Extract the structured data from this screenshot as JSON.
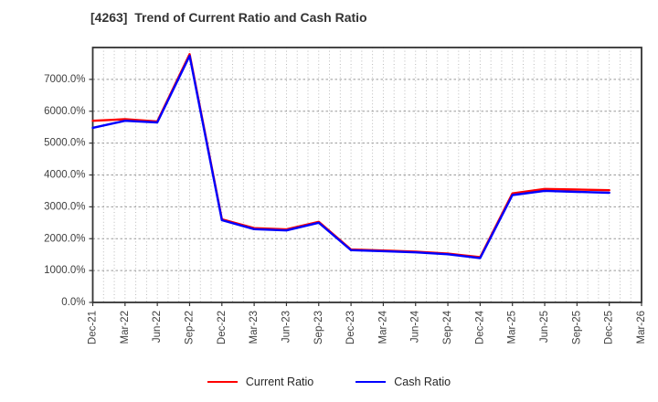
{
  "page": {
    "title": "[4263]  Trend of Current Ratio and Cash Ratio"
  },
  "chart_data": {
    "type": "line",
    "title": "[4263]  Trend of Current Ratio and Cash Ratio",
    "categories": [
      "Dec-21",
      "Mar-22",
      "Jun-22",
      "Sep-22",
      "Dec-22",
      "Mar-23",
      "Jun-23",
      "Sep-23",
      "Dec-23",
      "Mar-24",
      "Jun-24",
      "Sep-24",
      "Dec-24",
      "Mar-25",
      "Jun-25",
      "Sep-25",
      "Dec-25",
      "Mar-26"
    ],
    "series": [
      {
        "name": "Current Ratio",
        "color": "#ff0000",
        "values": [
          5700,
          5750,
          5680,
          7790,
          2610,
          2330,
          2290,
          2530,
          1660,
          1630,
          1590,
          1530,
          1420,
          3420,
          3560,
          3540,
          3520,
          null
        ]
      },
      {
        "name": "Cash Ratio",
        "color": "#0000ff",
        "values": [
          5480,
          5700,
          5650,
          7740,
          2580,
          2300,
          2260,
          2500,
          1640,
          1610,
          1570,
          1510,
          1390,
          3370,
          3500,
          3470,
          3440,
          null
        ]
      }
    ],
    "xlabel": "",
    "ylabel": "",
    "ylim": [
      0,
      8000
    ],
    "yticks": [
      0,
      1000,
      2000,
      3000,
      4000,
      5000,
      6000,
      7000
    ],
    "ytick_format": "####.0%",
    "grid": true,
    "x_minor_per_interval": 3,
    "legend_position": "bottom-center",
    "colors": {
      "grid_minor_v": "#b3b3b3",
      "grid_major_h": "#999999",
      "spine": "#333333",
      "tick_label": "#404040",
      "title": "#333333"
    }
  }
}
